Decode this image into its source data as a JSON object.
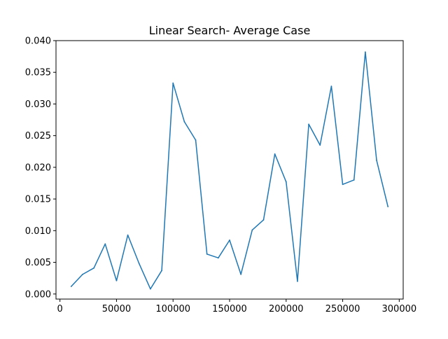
{
  "chart_data": {
    "type": "line",
    "title": "Linear Search- Average Case",
    "xlabel": "",
    "ylabel": "",
    "xlim": [
      -3500,
      303500
    ],
    "ylim": [
      -0.0008,
      0.04
    ],
    "x_ticks": [
      0,
      50000,
      100000,
      150000,
      200000,
      250000,
      300000
    ],
    "x_tick_labels": [
      "0",
      "50000",
      "100000",
      "150000",
      "200000",
      "250000",
      "300000"
    ],
    "y_ticks": [
      0.0,
      0.005,
      0.01,
      0.015,
      0.02,
      0.025,
      0.03,
      0.035,
      0.04
    ],
    "y_tick_labels": [
      "0.000",
      "0.005",
      "0.010",
      "0.015",
      "0.020",
      "0.025",
      "0.030",
      "0.035",
      "0.040"
    ],
    "grid": false,
    "legend": "none",
    "series": [
      {
        "color": "#1f77b4",
        "x": [
          10000,
          20000,
          30000,
          40000,
          50000,
          60000,
          70000,
          80000,
          90000,
          100000,
          110000,
          120000,
          130000,
          140000,
          150000,
          160000,
          170000,
          180000,
          190000,
          200000,
          210000,
          220000,
          230000,
          240000,
          250000,
          260000,
          270000,
          280000,
          290000
        ],
        "y": [
          0.0012,
          0.0031,
          0.0041,
          0.0079,
          0.0021,
          0.0093,
          0.0048,
          0.0008,
          0.0037,
          0.0333,
          0.0272,
          0.0243,
          0.0063,
          0.0057,
          0.0085,
          0.0031,
          0.0101,
          0.0117,
          0.0221,
          0.0177,
          0.002,
          0.0268,
          0.0235,
          0.0328,
          0.0173,
          0.018,
          0.0382,
          0.0211,
          0.0138
        ]
      }
    ]
  }
}
